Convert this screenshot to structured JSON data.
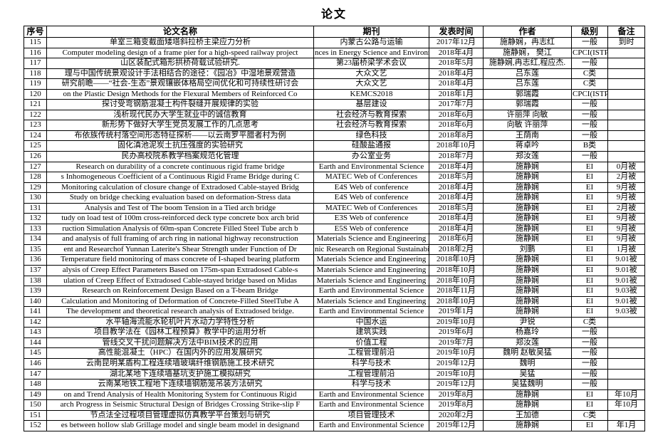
{
  "page": {
    "title": "论文"
  },
  "table": {
    "headers": [
      "序号",
      "论文名称",
      "期刊",
      "发表时间",
      "作者",
      "级别",
      "备注"
    ],
    "rows": [
      {
        "no": "115",
        "name": "单室三箱变截面矮塔斜拉桥主梁应力分析",
        "journal": "内蒙古公路与运输",
        "date": "2017年12月",
        "authors": "施静娴，冉志红",
        "level": "一般",
        "remark": "到时"
      },
      {
        "no": "116",
        "name": "Computer modeling design of a frame pier for a high-speed railway project",
        "journal": "nces in Energy Science and Environment Engine",
        "date": "2018年4月",
        "authors": "施静娴， 樊江",
        "level": "CPCI(ISTP)",
        "remark": ""
      },
      {
        "no": "117",
        "name": "山区装配式箱形拱桥荷载试验研究.",
        "journal": "第23届桥梁学术会议",
        "date": "2018年5月",
        "authors": "施静娴,冉志红,程应杰.",
        "level": "一般",
        "remark": ""
      },
      {
        "no": "118",
        "name": "理与中国传统景观设计手法相结合的途径：《园冶》中湿地景观营造",
        "journal": "大众文艺",
        "date": "2018年4月",
        "authors": "吕东莲",
        "level": "C类",
        "remark": ""
      },
      {
        "no": "119",
        "name": "研究前瞻——“社会-生态”景观镶嵌体格局空间优化和可持续性研讨会",
        "journal": "大众文艺",
        "date": "2018年4月",
        "authors": "吕东莲",
        "level": "C类",
        "remark": ""
      },
      {
        "no": "120",
        "name": "on the Plastic Design Methods for the Flexural Members of Reinforced Co",
        "journal": "KEMCS2018",
        "date": "2018年1月",
        "authors": "郭瑞霞",
        "level": "CPCI(ISTP)",
        "remark": ""
      },
      {
        "no": "121",
        "name": "探讨受弯钢筋混凝土构件裂缝开展规律的实验",
        "journal": "基层建设",
        "date": "2017年7月",
        "authors": "郭瑞霞",
        "level": "一般",
        "remark": ""
      },
      {
        "no": "122",
        "name": "浅析现代民办大学生就业中的诚信教育",
        "journal": "社会经济与教育探索",
        "date": "2018年6月",
        "authors": "许丽萍 向敏",
        "level": "一般",
        "remark": ""
      },
      {
        "no": "123",
        "name": "新形势下做好大学生党员发展工作的几点思考",
        "journal": "社会经济与教育探索",
        "date": "2018年6月",
        "authors": "向敏 许丽萍",
        "level": "一般",
        "remark": ""
      },
      {
        "no": "124",
        "name": "布依族传统村落空间形态特征探析——以云南罗平腊者村为例",
        "journal": "绿色科技",
        "date": "2018年8月",
        "authors": "王荫南",
        "level": "一般",
        "remark": ""
      },
      {
        "no": "125",
        "name": "固化滇池泥炭土抗压强度的实验研究",
        "journal": "硅酸盐通报",
        "date": "2018年10月",
        "authors": "蒋卓吟",
        "level": "B类",
        "remark": ""
      },
      {
        "no": "126",
        "name": "民办高校院系教学档案规范化管理",
        "journal": "办公室业务",
        "date": "2018年7月",
        "authors": "郑汝莲",
        "level": "一般",
        "remark": ""
      },
      {
        "no": "127",
        "name": "Research on durability of a concrete continuous rigid frame bridge",
        "journal": "Earth and Environmental Science",
        "date": "2018年4月",
        "authors": "施静娴",
        "level": "EI",
        "remark": "0月被"
      },
      {
        "no": "128",
        "name": "s Inhomogeneous Coefficient of a Continuous Rigid Frame Bridge during C",
        "journal": "MATEC Web of Conferences",
        "date": "2018年5月",
        "authors": "施静娴",
        "level": "EI",
        "remark": "2月被"
      },
      {
        "no": "129",
        "name": "Monitoring calculation of closure change of Extradosed Cable-stayed Bridg",
        "journal": "E4S Web of conference",
        "date": "2018年4月",
        "authors": "施静娴",
        "level": "EI",
        "remark": "9月被"
      },
      {
        "no": "130",
        "name": "Study on bridge checking evaluation based on deformation-Stress data",
        "journal": "E4S Web of conference",
        "date": "2018年4月",
        "authors": "施静娴",
        "level": "EI",
        "remark": "9月被"
      },
      {
        "no": "131",
        "name": "Analysis and Test of The boom Tension in a Tied arch bridge",
        "journal": "MATEC Web of Conferences",
        "date": "2018年5月",
        "authors": "施静娴",
        "level": "EI",
        "remark": "2月被"
      },
      {
        "no": "132",
        "name": "tudy on load test of 100m cross-reinforced deck type concrete box arch brid",
        "journal": "E3S Web of conference",
        "date": "2018年4月",
        "authors": "施静娴",
        "level": "EI",
        "remark": "9月被"
      },
      {
        "no": "133",
        "name": "ruction Simulation Analysis of 60m-span Concrete Filled Steel Tube arch b",
        "journal": "E5S Web of conference",
        "date": "2018年4月",
        "authors": "施静娴",
        "level": "EI",
        "remark": "9月被"
      },
      {
        "no": "134",
        "name": "and analysis of full framing of arch ring in national highway reconstruction",
        "journal": "Materials Science and Engineering",
        "date": "2018年6月",
        "authors": "施静娴",
        "level": "EI",
        "remark": "9月被"
      },
      {
        "no": "135",
        "name": "ent and Researchof Yunnan Laterite's Shear Strength under Function of Dr",
        "journal": "nic Research on Regional Sustainability:Land,Ri",
        "date": "2018年2月",
        "authors": "刘鹏",
        "level": "EI",
        "remark": "1月被"
      },
      {
        "no": "136",
        "name": "Temperature field monitoring of mass concrete of I-shaped bearing platform",
        "journal": "Materials Science and Engineering",
        "date": "2018年10月",
        "authors": "施静娴",
        "level": "EI",
        "remark": "9.01被"
      },
      {
        "no": "137",
        "name": "alysis of Creep Effect Parameters Based on 175m-span Extradosed Cable-s",
        "journal": "Materials Science and Engineering",
        "date": "2018年10月",
        "authors": "施静娴",
        "level": "EI",
        "remark": "9.01被"
      },
      {
        "no": "138",
        "name": "ulation of Creep Effect of Extradosed Cable-stayed bridge based on Midas",
        "journal": "Materials Science and Engineering",
        "date": "2018年10月",
        "authors": "施静娴",
        "level": "EI",
        "remark": "9.01被"
      },
      {
        "no": "139",
        "name": "Research on Reinforcement Design Based on a T-beam Bridge",
        "journal": "Earth and Environmental Science",
        "date": "2018年11月",
        "authors": "施静娴",
        "level": "EI",
        "remark": "9.03被"
      },
      {
        "no": "140",
        "name": "Calculation and Monitoring of Deformation of Concrete-Filled SteelTube A",
        "journal": "Materials Science and Engineering",
        "date": "2018年10月",
        "authors": "施静娴",
        "level": "EI",
        "remark": "9.01被"
      },
      {
        "no": "141",
        "name": "The development and theoretical research analysis of Extradosed bridge.",
        "journal": "Earth and Environmental Science",
        "date": "2019年1月",
        "authors": "施静娴",
        "level": "EI",
        "remark": "9.03被"
      },
      {
        "no": "142",
        "name": "水平轴海流能水轮机叶片水动力学特性分析",
        "journal": "中国水运",
        "date": "2019年10月",
        "authors": "尹锐",
        "level": "C类",
        "remark": ""
      },
      {
        "no": "143",
        "name": "项目教学法在《园林工程预算》教学中的运用分析",
        "journal": "建筑实践",
        "date": "2019年6月",
        "authors": "杨嘉玲",
        "level": "一般",
        "remark": ""
      },
      {
        "no": "144",
        "name": "管线交叉干扰问题解决方法中BIM技术的应用",
        "journal": "价值工程",
        "date": "2019年7月",
        "authors": "郑汝莲",
        "level": "一般",
        "remark": ""
      },
      {
        "no": "145",
        "name": "高性能混凝土（HPC）在国内外的应用发展研究",
        "journal": "工程管理前沿",
        "date": "2019年10月",
        "authors": "魏明 赵敏吴猛",
        "level": "一般",
        "remark": ""
      },
      {
        "no": "146",
        "name": "云南昆明某盾构工程连续墙玻璃纤维钢筋施工技术研究",
        "journal": "科学与技术",
        "date": "2019年12月",
        "authors": "魏明",
        "level": "一般",
        "remark": ""
      },
      {
        "no": "147",
        "name": "湖北某地下连续墙基坑支护施工模拟研究",
        "journal": "工程管理前沿",
        "date": "2019年10月",
        "authors": "吴猛",
        "level": "一般",
        "remark": ""
      },
      {
        "no": "148",
        "name": "云南某地铁工程地下连续墙钢筋笼吊装方法研究",
        "journal": "科学与技术",
        "date": "2019年12月",
        "authors": "吴猛魏明",
        "level": "一般",
        "remark": ""
      },
      {
        "no": "149",
        "name": "on and Trend Analysis of Health Monitoring System for Continuous Rigid",
        "journal": "Earth and Environmental Science",
        "date": "2019年8月",
        "authors": "施静娴",
        "level": "EI",
        "remark": "年10月"
      },
      {
        "no": "150",
        "name": "arch Progress in Seismic Structural Design of Bridges Crossing Strike-slip F",
        "journal": "Earth and Environmental Science",
        "date": "2019年8月",
        "authors": "施静娴",
        "level": "EI",
        "remark": "年10月"
      },
      {
        "no": "151",
        "name": "节点法全过程项目管理虚拟仿真教学平台策划与研究",
        "journal": "项目管理技术",
        "date": "2020年2月",
        "authors": "王加德",
        "level": "C类",
        "remark": ""
      },
      {
        "no": "152",
        "name": "es between hollow slab Grillage model and single beam model in designand",
        "journal": "Earth and Environmental Science",
        "date": "2019年12月",
        "authors": "施静娴",
        "level": "EI",
        "remark": "年1月"
      }
    ]
  }
}
